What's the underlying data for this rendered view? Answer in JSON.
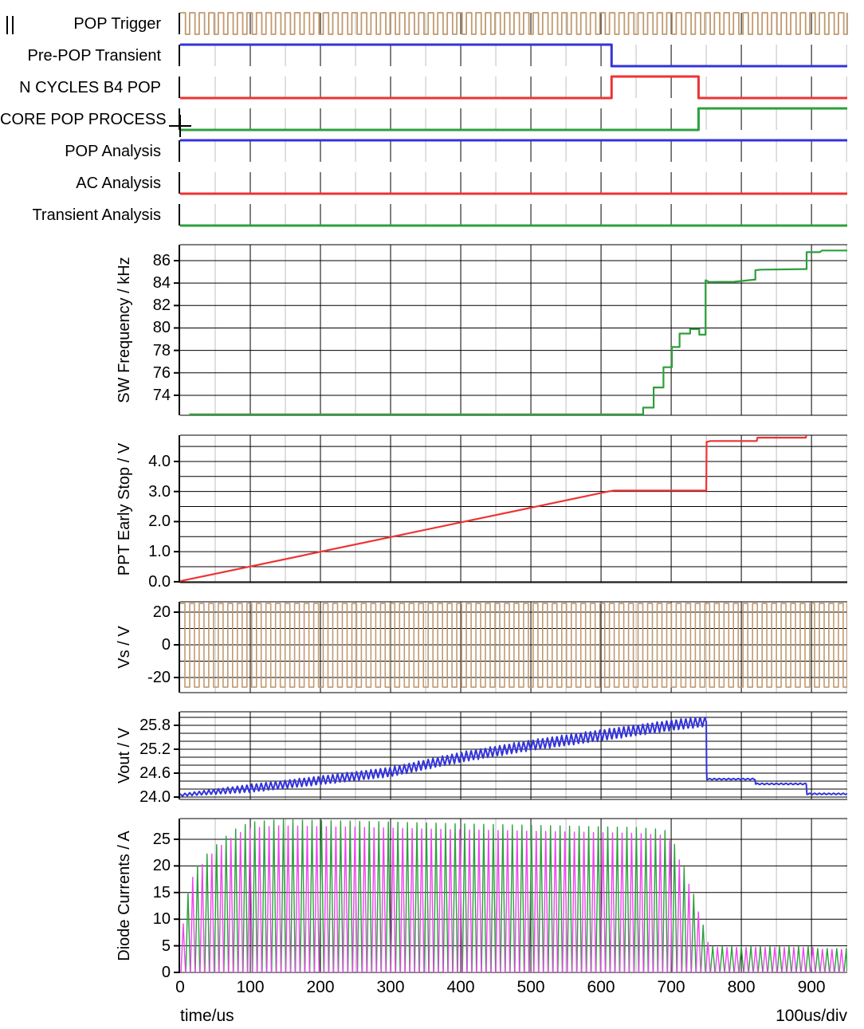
{
  "colors": {
    "tan": "#c09a70",
    "blue": "#3333dd",
    "red": "#ee3333",
    "green": "#2ca03c",
    "magenta": "#ee44ee",
    "grid_major": "#000000",
    "grid_minor": "#bfbfbf",
    "axis": "#000000"
  },
  "chart_data": {
    "type": "line",
    "title": "",
    "x_axis": {
      "title": "time/us",
      "per_div": "100us/div",
      "range_us": [
        0,
        951
      ],
      "major_tick_step_us": 100,
      "minor_tick_step_us": 50,
      "ticks": [
        {
          "t": 0,
          "label": "0"
        },
        {
          "t": 100,
          "label": "100"
        },
        {
          "t": 200,
          "label": "200"
        },
        {
          "t": 300,
          "label": "300"
        },
        {
          "t": 400,
          "label": "400"
        },
        {
          "t": 500,
          "label": "500"
        },
        {
          "t": 600,
          "label": "600"
        },
        {
          "t": 700,
          "label": "700"
        },
        {
          "t": 800,
          "label": "800"
        },
        {
          "t": 900,
          "label": "900"
        }
      ]
    },
    "digital_panels": [
      {
        "id": "pop-trigger",
        "label": "POP Trigger",
        "color_key": "tan",
        "waveform": {
          "type": "clock",
          "period_us": 13.6,
          "duty": 0.56
        }
      },
      {
        "id": "pre-pop-transient",
        "label": "Pre-POP Transient",
        "color_key": "blue",
        "waveform": {
          "type": "levels",
          "points": [
            [
              0,
              1
            ],
            [
              615,
              0
            ]
          ]
        }
      },
      {
        "id": "n-cycles-b4-pop",
        "label": "N CYCLES B4 POP",
        "color_key": "red",
        "waveform": {
          "type": "levels",
          "points": [
            [
              0,
              0
            ],
            [
              615,
              1
            ],
            [
              739,
              0
            ]
          ]
        }
      },
      {
        "id": "core-pop-process",
        "label": "CORE POP PROCESS",
        "color_key": "green",
        "waveform": {
          "type": "levels",
          "points": [
            [
              0,
              0
            ],
            [
              739,
              1
            ]
          ]
        }
      },
      {
        "id": "pop-analysis",
        "label": "POP Analysis",
        "color_key": "blue",
        "waveform": {
          "type": "levels",
          "points": [
            [
              0,
              1
            ]
          ]
        }
      },
      {
        "id": "ac-analysis",
        "label": "AC Analysis",
        "color_key": "red",
        "waveform": {
          "type": "levels",
          "points": [
            [
              0,
              0
            ]
          ]
        }
      },
      {
        "id": "transient-analysis",
        "label": "Transient Analysis",
        "color_key": "green",
        "waveform": {
          "type": "levels",
          "points": [
            [
              0,
              0
            ]
          ]
        }
      }
    ],
    "analog_panels": [
      {
        "id": "sw-frequency",
        "ylabel": "SW Frequency / kHz",
        "y_range": [
          87.42,
          72.22
        ],
        "gridline_values": [
          86,
          84,
          82,
          80,
          78,
          76,
          74
        ],
        "labeled_ticks": [
          {
            "v": 86,
            "label": "86"
          },
          {
            "v": 84,
            "label": "84"
          },
          {
            "v": 82,
            "label": "82"
          },
          {
            "v": 80,
            "label": "80"
          },
          {
            "v": 78,
            "label": "78"
          },
          {
            "v": 76,
            "label": "76"
          },
          {
            "v": 74,
            "label": "74"
          }
        ],
        "series": [
          {
            "name": "sw-frequency",
            "color_key": "green",
            "type": "line",
            "points": [
              [
                13,
                72.3
              ],
              [
                660,
                72.3
              ],
              [
                660,
                72.9
              ],
              [
                675,
                72.9
              ],
              [
                675,
                74.7
              ],
              [
                689,
                74.7
              ],
              [
                689,
                76.5
              ],
              [
                701,
                76.5
              ],
              [
                701,
                78.3
              ],
              [
                712,
                78.3
              ],
              [
                712,
                79.5
              ],
              [
                727,
                79.5
              ],
              [
                727,
                79.9
              ],
              [
                740,
                79.9
              ],
              [
                740,
                79.4
              ],
              [
                749,
                79.4
              ],
              [
                749,
                84.25
              ],
              [
                754,
                84.1
              ],
              [
                790,
                84.12
              ],
              [
                818,
                84.3
              ],
              [
                820,
                84.3
              ],
              [
                820,
                85.15
              ],
              [
                828,
                85.2
              ],
              [
                890,
                85.25
              ],
              [
                893,
                85.25
              ],
              [
                893,
                86.75
              ],
              [
                912,
                86.75
              ],
              [
                915,
                86.9
              ],
              [
                951,
                86.9
              ]
            ]
          }
        ]
      },
      {
        "id": "ppt-early-stop",
        "ylabel": "PPT Early Stop / V",
        "y_range": [
          4.873,
          -0.03
        ],
        "gridline_values": [
          4.5,
          4.0,
          3.5,
          3.0,
          2.5,
          2.0,
          1.5,
          1.0,
          0.5,
          0.0
        ],
        "labeled_ticks": [
          {
            "v": 4.0,
            "label": "4.0"
          },
          {
            "v": 3.0,
            "label": "3.0"
          },
          {
            "v": 2.0,
            "label": "2.0"
          },
          {
            "v": 1.0,
            "label": "1.0"
          },
          {
            "v": 0.0,
            "label": "0.0"
          }
        ],
        "series": [
          {
            "name": "ppt-early-stop",
            "color_key": "red",
            "type": "line",
            "points": [
              [
                0,
                0.02
              ],
              [
                610,
                3.0
              ],
              [
                618,
                3.03
              ],
              [
                750,
                3.03
              ],
              [
                750.5,
                4.65
              ],
              [
                756,
                4.68
              ],
              [
                822,
                4.68
              ],
              [
                823,
                4.79
              ],
              [
                892,
                4.79
              ],
              [
                893,
                4.97
              ],
              [
                951,
                4.98
              ]
            ]
          }
        ]
      },
      {
        "id": "vs",
        "ylabel": "Vs / V",
        "y_range": [
          26.34,
          -29.27
        ],
        "gridline_values": [
          20,
          10,
          0,
          -10,
          -20
        ],
        "labeled_ticks": [
          {
            "v": 20,
            "label": "20"
          },
          {
            "v": 0,
            "label": "0"
          },
          {
            "v": -20,
            "label": "-20"
          }
        ],
        "series": [
          {
            "name": "vs",
            "color_key": "tan",
            "type": "square",
            "high": 25.3,
            "low": -25.9,
            "period_us": 13.6,
            "duty": 0.5
          }
        ]
      },
      {
        "id": "vout",
        "ylabel": "Vout / V",
        "y_range": [
          26.14,
          23.94
        ],
        "gridline_values": [
          26.0,
          25.8,
          25.6,
          25.4,
          25.2,
          25.0,
          24.8,
          24.6,
          24.4,
          24.2,
          24.0
        ],
        "labeled_ticks": [
          {
            "v": 25.8,
            "label": "25.8"
          },
          {
            "v": 25.2,
            "label": "25.2"
          },
          {
            "v": 24.6,
            "label": "24.6"
          },
          {
            "v": 24.0,
            "label": "24.0"
          }
        ],
        "series": [
          {
            "name": "vout",
            "color_key": "blue",
            "type": "ripple",
            "period_us": 6.8,
            "centers": [
              [
                0,
                24.05
              ],
              [
                100,
                24.22
              ],
              [
                200,
                24.42
              ],
              [
                300,
                24.63
              ],
              [
                400,
                25.0
              ],
              [
                500,
                25.3
              ],
              [
                600,
                25.55
              ],
              [
                700,
                25.8
              ],
              [
                750,
                25.9
              ],
              [
                750.6,
                24.45
              ],
              [
                819.5,
                24.45
              ],
              [
                820.5,
                24.33
              ],
              [
                892.5,
                24.33
              ],
              [
                893.5,
                24.08
              ],
              [
                951,
                24.08
              ]
            ],
            "amps": [
              [
                0,
                0.03
              ],
              [
                100,
                0.1
              ],
              [
                300,
                0.12
              ],
              [
                600,
                0.14
              ],
              [
                745,
                0.13
              ],
              [
                750.4,
                0.08
              ],
              [
                751,
                0.018
              ],
              [
                951,
                0.018
              ]
            ]
          }
        ]
      },
      {
        "id": "diode-currents",
        "ylabel": "Diode Currents / A",
        "y_range": [
          28.89,
          0
        ],
        "gridline_values": [
          25,
          20,
          15,
          10,
          5,
          0
        ],
        "labeled_ticks": [
          {
            "v": 25,
            "label": "25"
          },
          {
            "v": 20,
            "label": "20"
          },
          {
            "v": 15,
            "label": "15"
          },
          {
            "v": 10,
            "label": "10"
          },
          {
            "v": 5,
            "label": "5"
          },
          {
            "v": 0,
            "label": "0"
          }
        ],
        "series": [
          {
            "name": "diode-1",
            "color_key": "green",
            "type": "pulses",
            "period_us": 13.6,
            "offset_us": 11.2,
            "width_us": 6.4,
            "scale": 1.0,
            "envelope": [
              [
                0,
                6
              ],
              [
                15,
                18
              ],
              [
                25,
                20
              ],
              [
                40,
                22.5
              ],
              [
                60,
                25
              ],
              [
                80,
                27
              ],
              [
                100,
                28.2
              ],
              [
                140,
                28.7
              ],
              [
                250,
                28.4
              ],
              [
                400,
                27.9
              ],
              [
                550,
                27.5
              ],
              [
                650,
                27.2
              ],
              [
                690,
                26.8
              ],
              [
                700,
                25.5
              ],
              [
                715,
                21
              ],
              [
                730,
                15.5
              ],
              [
                742,
                10.5
              ],
              [
                752,
                6
              ],
              [
                756,
                4.9
              ],
              [
                905,
                4.9
              ],
              [
                907,
                4.5
              ],
              [
                951,
                4.5
              ]
            ]
          },
          {
            "name": "diode-2",
            "color_key": "magenta",
            "type": "pulses",
            "period_us": 13.6,
            "offset_us": 4.4,
            "width_us": 6.4,
            "scale": 0.96,
            "envelope": [
              [
                0,
                6
              ],
              [
                15,
                18
              ],
              [
                25,
                20
              ],
              [
                40,
                22.5
              ],
              [
                60,
                25
              ],
              [
                80,
                27
              ],
              [
                100,
                28.2
              ],
              [
                140,
                28.7
              ],
              [
                250,
                28.4
              ],
              [
                400,
                27.9
              ],
              [
                550,
                27.5
              ],
              [
                650,
                27.2
              ],
              [
                690,
                26.8
              ],
              [
                700,
                25.5
              ],
              [
                715,
                21
              ],
              [
                730,
                15.5
              ],
              [
                742,
                10.5
              ],
              [
                752,
                6
              ],
              [
                756,
                4.9
              ],
              [
                905,
                4.9
              ],
              [
                907,
                4.5
              ],
              [
                951,
                4.5
              ]
            ]
          }
        ]
      }
    ]
  }
}
